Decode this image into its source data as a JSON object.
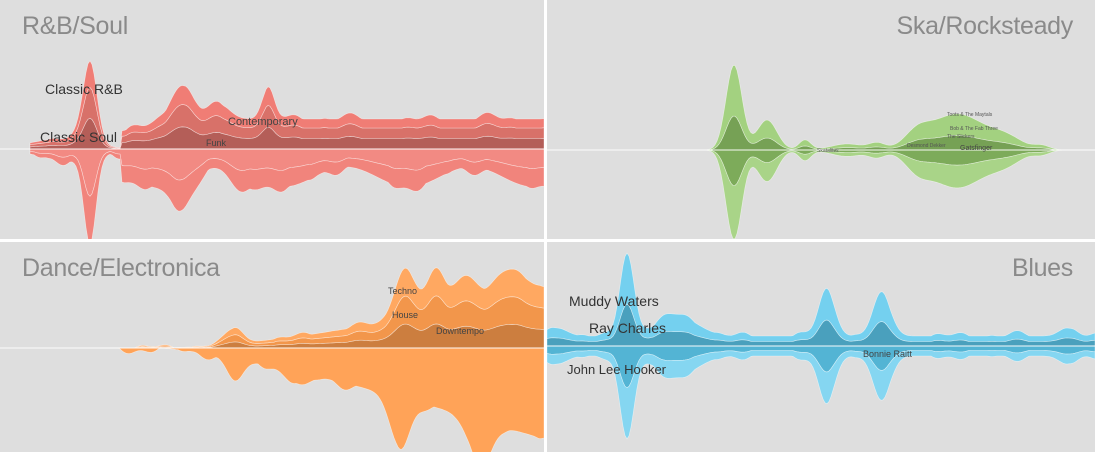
{
  "colors": {
    "rnb": "#f07d75",
    "ska": "#93c96a",
    "dance": "#ff9e4f",
    "blues": "#5cc8ec",
    "background": "#dedede"
  },
  "chart_data": [
    {
      "type": "area",
      "title": "R&B/Soul",
      "series_labels": [
        "Classic R&B",
        "Classic Soul",
        "Contemporary",
        "Funk"
      ]
    },
    {
      "type": "area",
      "title": "Ska/Rocksteady",
      "series_labels": [
        "Skatalites",
        "Toots & The Maytals",
        "The Slickers",
        "Desmond Dekker",
        "Bob & The Fab Three",
        "Gatsfinger"
      ]
    },
    {
      "type": "area",
      "title": "Dance/Electronica",
      "series_labels": [
        "Techno",
        "House",
        "Downtempo"
      ]
    },
    {
      "type": "area",
      "title": "Blues",
      "series_labels": [
        "Muddy Waters",
        "Ray Charles",
        "John Lee Hooker",
        "Bonnie Raitt"
      ]
    }
  ]
}
